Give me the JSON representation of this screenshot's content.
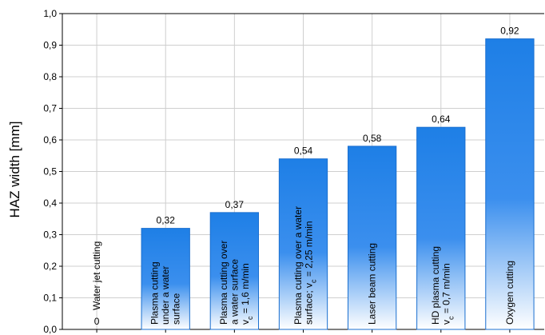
{
  "chart_data": {
    "type": "bar",
    "ylabel": "HAZ width [mm]",
    "ylim": [
      0,
      1.0
    ],
    "grid": true,
    "y_ticks": [
      "0,0",
      "0,1",
      "0,2",
      "0,3",
      "0,4",
      "0,5",
      "0,6",
      "0,7",
      "0,8",
      "0,9",
      "1,0"
    ],
    "categories": [
      [
        "Water jet cutting"
      ],
      [
        "Plasma cutting",
        "under a water",
        "surface"
      ],
      [
        "Plasma cutting over",
        "a water surface",
        "v_c = 1,6 m/min"
      ],
      [
        "Plasma cutting over a water",
        "surface; v_c = 2,25 m/min"
      ],
      [
        "Laser beam cutting"
      ],
      [
        "HD plasma cutting",
        "v_c = 0,7 m/min"
      ],
      [
        "Oxygen cutting"
      ]
    ],
    "values": [
      0,
      0.32,
      0.37,
      0.54,
      0.58,
      0.64,
      0.92
    ],
    "value_labels": [
      "0",
      "0,32",
      "0,37",
      "0,54",
      "0,58",
      "0,64",
      "0,92"
    ],
    "bar_color": "#1e7fe6"
  }
}
